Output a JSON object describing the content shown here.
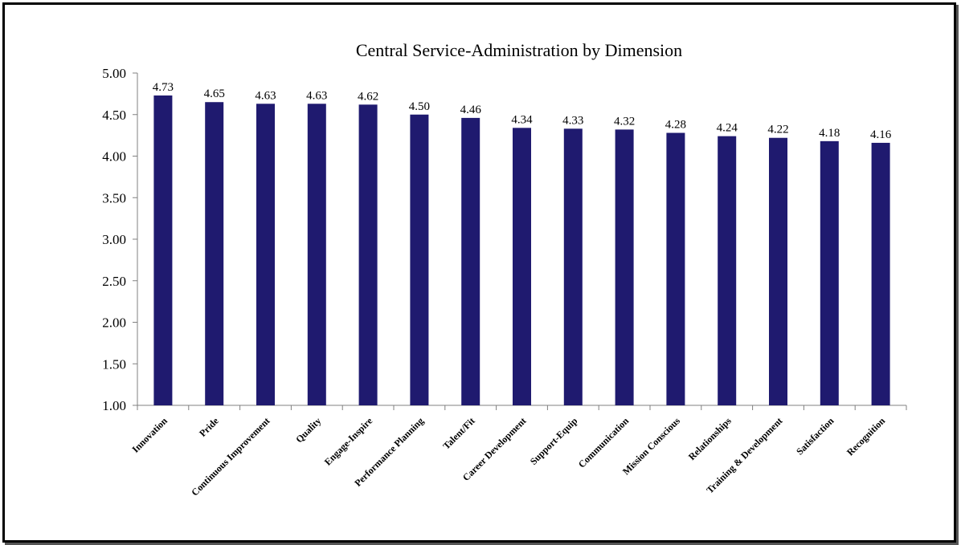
{
  "chart_data": {
    "type": "bar",
    "title": "Central Service-Administration  by Dimension",
    "xlabel": "",
    "ylabel": "",
    "ylim": [
      1.0,
      5.0
    ],
    "y_ticks": [
      "1.00",
      "1.50",
      "2.00",
      "2.50",
      "3.00",
      "3.50",
      "4.00",
      "4.50",
      "5.00"
    ],
    "y_tick_values": [
      1.0,
      1.5,
      2.0,
      2.5,
      3.0,
      3.5,
      4.0,
      4.5,
      5.0
    ],
    "categories": [
      "Innovation",
      "Pride",
      "Continuous Improvement",
      "Quality",
      "Engage-Inspire",
      "Performance Planning",
      "Talent/Fit",
      "Career Development",
      "Support-Equip",
      "Communication",
      "Mission Conscious",
      "Relationships",
      "Training & Development",
      "Satisfaction",
      "Recognition"
    ],
    "values": [
      4.73,
      4.65,
      4.63,
      4.63,
      4.62,
      4.5,
      4.46,
      4.34,
      4.33,
      4.32,
      4.28,
      4.24,
      4.22,
      4.18,
      4.16
    ],
    "data_labels": [
      "4.73",
      "4.65",
      "4.63",
      "4.63",
      "4.62",
      "4.50",
      "4.46",
      "4.34",
      "4.33",
      "4.32",
      "4.28",
      "4.24",
      "4.22",
      "4.18",
      "4.16"
    ],
    "grid": false,
    "legend": "none",
    "bar_color": "#1F1A6F"
  }
}
